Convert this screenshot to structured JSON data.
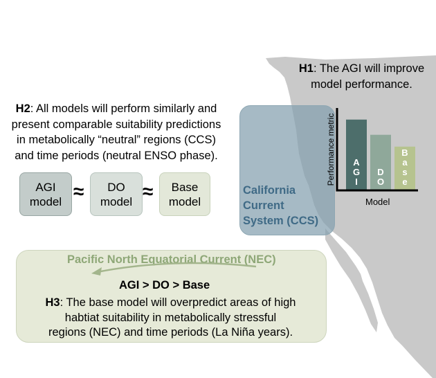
{
  "h1": {
    "tag": "H1",
    "line1": ": The AGI will improve",
    "line2": "model performance."
  },
  "h2": {
    "tag": "H2",
    "line1": ": All models will perform similarly and",
    "line2": "present comparable suitability predictions",
    "line3": "in metabolically “neutral” regions (CCS)",
    "line4": "and time periods (neutral ENSO phase)."
  },
  "models": {
    "agi": [
      "AGI",
      "model"
    ],
    "do": [
      "DO",
      "model"
    ],
    "base": [
      "Base",
      "model"
    ],
    "approx": "≈"
  },
  "ccs": {
    "line1": "California",
    "line2": "Current",
    "line3": "System (CCS)"
  },
  "h3": {
    "current": "Pacific North Equatorial Current (NEC)",
    "order": "AGI > DO > Base",
    "tag": "H3",
    "line1": ": The base model will overpredict areas of high",
    "line2": "habtiat suitability in metabolically stressful",
    "line3": "regions (NEC) and time periods (La Niña years)."
  },
  "colors": {
    "map_land": "#c9c9c9",
    "ccs_fill": "#83a0ae",
    "ccs_text": "#3f6a86",
    "nec_text": "#8ea777",
    "bar_agi": "#4d6e6b",
    "bar_do": "#8fa89a",
    "bar_base": "#b6c38f"
  },
  "chart_data": {
    "type": "bar",
    "categories": [
      "AGI",
      "DO",
      "Base"
    ],
    "values": [
      0.83,
      0.65,
      0.51
    ],
    "ylim": [
      0,
      1
    ],
    "ylabel": "Performance metric",
    "xlabel": "Model",
    "colors": [
      "#4d6e6b",
      "#8fa89a",
      "#b6c38f"
    ]
  }
}
